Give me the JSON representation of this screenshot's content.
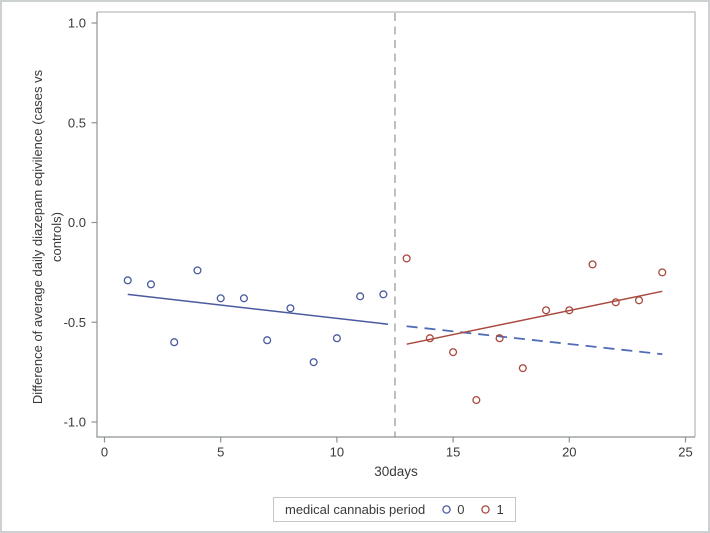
{
  "chart_data": {
    "type": "scatter",
    "title": "",
    "xlabel": "30days",
    "ylabel": "Difference of average daily diazepam eqivilence (cases vs controls)",
    "ylabel_lines": [
      "Difference of average daily diazepam eqivilence (cases vs",
      "controls)"
    ],
    "xlim": [
      0,
      25
    ],
    "ylim": [
      -1.0,
      1.0
    ],
    "xticks": [
      0,
      5,
      10,
      15,
      20,
      25
    ],
    "xtick_labels": [
      "0",
      "5",
      "10",
      "15",
      "20",
      "25"
    ],
    "yticks": [
      1.0,
      0.5,
      0.0,
      -0.5,
      -1.0
    ],
    "ytick_labels": [
      "1.0",
      "0.5",
      "0.0",
      "-0.5",
      "-1.0"
    ],
    "grid": false,
    "legend": {
      "title": "medical cannabis period",
      "position": "bottom",
      "entries": [
        {
          "label": "0",
          "color": "#4a5aa0"
        },
        {
          "label": "1",
          "color": "#a8493d"
        }
      ]
    },
    "series": [
      {
        "name": "0",
        "marker": "open-circle",
        "color": "#4a5aa0",
        "points": [
          [
            1,
            -0.29
          ],
          [
            2,
            -0.31
          ],
          [
            3,
            -0.6
          ],
          [
            4,
            -0.24
          ],
          [
            5,
            -0.38
          ],
          [
            6,
            -0.38
          ],
          [
            7,
            -0.59
          ],
          [
            8,
            -0.43
          ],
          [
            9,
            -0.7
          ],
          [
            10,
            -0.58
          ],
          [
            11,
            -0.37
          ],
          [
            12,
            -0.36
          ]
        ]
      },
      {
        "name": "1",
        "marker": "open-circle",
        "color": "#a8493d",
        "points": [
          [
            13,
            -0.18
          ],
          [
            14,
            -0.58
          ],
          [
            15,
            -0.65
          ],
          [
            16,
            -0.89
          ],
          [
            17,
            -0.58
          ],
          [
            18,
            -0.73
          ],
          [
            19,
            -0.44
          ],
          [
            20,
            -0.44
          ],
          [
            21,
            -0.21
          ],
          [
            22,
            -0.4
          ],
          [
            23,
            -0.39
          ],
          [
            24,
            -0.25
          ]
        ]
      }
    ],
    "fit_lines": [
      {
        "name": "period-0-fit",
        "style": "solid",
        "color": "#4a5aa0",
        "x1": 1.0,
        "y1": -0.36,
        "x2": 12.2,
        "y2": -0.51
      },
      {
        "name": "period-0-counterfactual",
        "style": "dashed",
        "color": "#4f6cb4",
        "x1": 13.0,
        "y1": -0.52,
        "x2": 24.0,
        "y2": -0.66
      },
      {
        "name": "period-1-fit",
        "style": "solid",
        "color": "#a8493d",
        "x1": 13.0,
        "y1": -0.61,
        "x2": 24.0,
        "y2": -0.345
      }
    ],
    "reference_line": {
      "axis": "x",
      "value": 12.5,
      "style": "dashed",
      "color": "#a9a9a9"
    },
    "colors": {
      "frame_light": "#c5c9c9",
      "axis_dark": "#8e9292",
      "text": "#3a3a3a",
      "refline": "#a9a9a9"
    }
  }
}
